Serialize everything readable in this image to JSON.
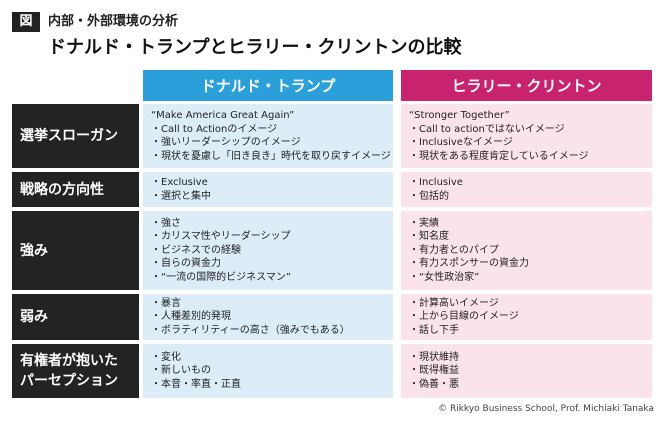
{
  "header": {
    "figure_label": "図",
    "section": "内部・外部環境の分析",
    "title": "ドナルド・トランプとヒラリー・クリントンの比較"
  },
  "table": {
    "columns": [
      "ドナルド・トランプ",
      "ヒラリー・クリントン"
    ],
    "rows": [
      {
        "label": [
          "選挙スローガン"
        ],
        "cells": [
          [
            "“Make America Great Again”",
            "・Call to Actionのイメージ",
            "・強いリーダーシップのイメージ",
            "・現状を憂慮し「旧き良き」時代を取り戻すイメージ"
          ],
          [
            "“Stronger Together”",
            "・Call to actionではないイメージ",
            "・Inclusiveなイメージ",
            "・現状をある程度肯定しているイメージ"
          ]
        ]
      },
      {
        "label": [
          "戦略の方向性"
        ],
        "cells": [
          [
            "・Exclusive",
            "・選択と集中"
          ],
          [
            "・Inclusive",
            "・包括的"
          ]
        ]
      },
      {
        "label": [
          "強み"
        ],
        "cells": [
          [
            "・強さ",
            "・カリスマ性やリーダーシップ",
            "・ビジネスでの経験",
            "・自らの資金力",
            "・“一流の国際的ビジネスマン”"
          ],
          [
            "・実績",
            "・知名度",
            "・有力者とのパイプ",
            "・有力スポンサーの資金力",
            "・“女性政治家”"
          ]
        ]
      },
      {
        "label": [
          "弱み"
        ],
        "cells": [
          [
            "・暴言",
            "・人種差別的発現",
            "・ボラティリティーの高さ（強みでもある）"
          ],
          [
            "・計算高いイメージ",
            "・上から目線のイメージ",
            "・話し下手"
          ]
        ]
      },
      {
        "label": [
          "有権者が抱いた",
          "パーセプション"
        ],
        "cells": [
          [
            "・変化",
            "・新しいもの",
            "・本音・率直・正直"
          ],
          [
            "・現状維持",
            "・既得権益",
            "・偽善・悪"
          ]
        ]
      }
    ]
  },
  "footer": {
    "credit": "© Rikkyo Business School, Prof. Michiaki Tanaka"
  }
}
